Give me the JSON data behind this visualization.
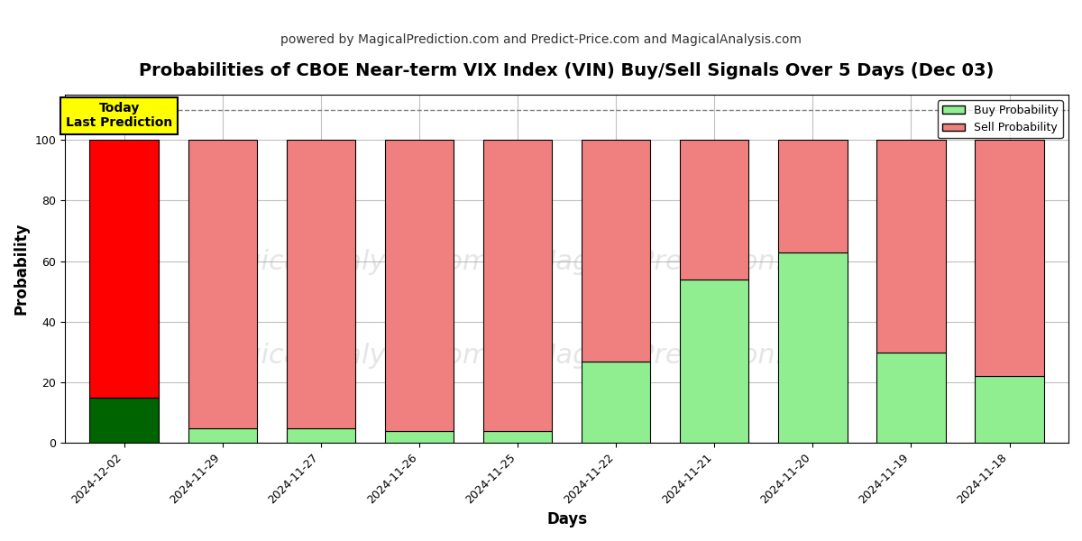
{
  "title": "Probabilities of CBOE Near-term VIX Index (VIN) Buy/Sell Signals Over 5 Days (Dec 03)",
  "subtitle": "powered by MagicalPrediction.com and Predict-Price.com and MagicalAnalysis.com",
  "xlabel": "Days",
  "ylabel": "Probability",
  "days": [
    "2024-12-02",
    "2024-11-29",
    "2024-11-27",
    "2024-11-26",
    "2024-11-25",
    "2024-11-22",
    "2024-11-21",
    "2024-11-20",
    "2024-11-19",
    "2024-11-18"
  ],
  "buy_probs": [
    15,
    5,
    5,
    4,
    4,
    27,
    54,
    63,
    30,
    22
  ],
  "sell_probs": [
    85,
    95,
    95,
    96,
    96,
    73,
    46,
    37,
    70,
    78
  ],
  "today_bar_buy_color": "#006400",
  "today_bar_sell_color": "#FF0000",
  "other_bar_buy_color": "#90EE90",
  "other_bar_sell_color": "#F08080",
  "bar_edgecolor": "#000000",
  "today_annotation": "Today\nLast Prediction",
  "today_annotation_bgcolor": "#FFFF00",
  "today_annotation_edgecolor": "#000000",
  "ylim": [
    0,
    115
  ],
  "dashed_line_y": 110,
  "dashed_line_color": "#808080",
  "grid_color": "#C0C0C0",
  "watermark_text1": "MagicalAnalysis.com",
  "watermark_text2": "MagicalPrediction.com",
  "watermark_color": "#999999",
  "watermark_alpha": 0.25,
  "legend_buy_label": "Buy Probability",
  "legend_sell_label": "Sell Probability",
  "background_color": "#FFFFFF",
  "title_fontsize": 14,
  "subtitle_fontsize": 10,
  "axis_label_fontsize": 12,
  "tick_fontsize": 9
}
